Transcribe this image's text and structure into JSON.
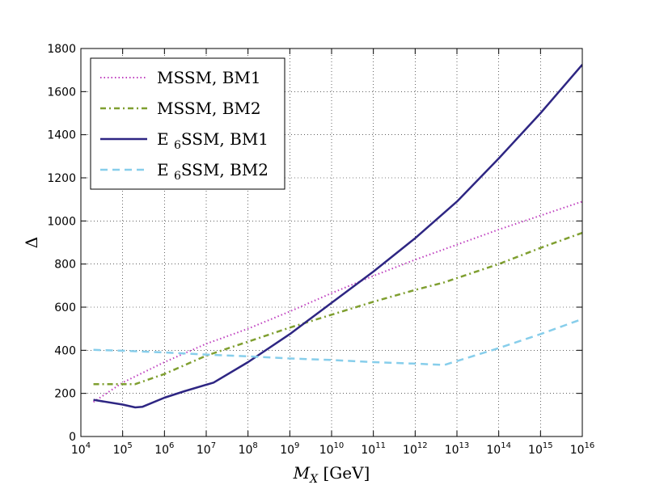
{
  "chart_data": {
    "type": "line",
    "xlabel": "M_X [GeV]",
    "ylabel": "Δ",
    "xscale": "log",
    "xlim": [
      10000,
      10000000000000000
    ],
    "ylim": [
      0,
      1800
    ],
    "grid": true,
    "legend_position": "top-left",
    "x_ticks": [
      {
        "value": 10000,
        "base": "10",
        "exp": "4"
      },
      {
        "value": 100000,
        "base": "10",
        "exp": "5"
      },
      {
        "value": 1000000,
        "base": "10",
        "exp": "6"
      },
      {
        "value": 10000000,
        "base": "10",
        "exp": "7"
      },
      {
        "value": 100000000,
        "base": "10",
        "exp": "8"
      },
      {
        "value": 1000000000,
        "base": "10",
        "exp": "9"
      },
      {
        "value": 10000000000,
        "base": "10",
        "exp": "10"
      },
      {
        "value": 100000000000,
        "base": "10",
        "exp": "11"
      },
      {
        "value": 1000000000000,
        "base": "10",
        "exp": "12"
      },
      {
        "value": 10000000000000,
        "base": "10",
        "exp": "13"
      },
      {
        "value": 100000000000000,
        "base": "10",
        "exp": "14"
      },
      {
        "value": 1000000000000000,
        "base": "10",
        "exp": "15"
      },
      {
        "value": 10000000000000000,
        "base": "10",
        "exp": "16"
      }
    ],
    "y_ticks": [
      0,
      200,
      400,
      600,
      800,
      1000,
      1200,
      1400,
      1600,
      1800
    ],
    "series": [
      {
        "name": "MSSM, BM1",
        "color": "#bf3fbf",
        "style": "dotted",
        "points": [
          [
            20000,
            160
          ],
          [
            100000,
            250
          ],
          [
            1000000,
            345
          ],
          [
            10000000,
            430
          ],
          [
            100000000,
            500
          ],
          [
            1000000000,
            580
          ],
          [
            10000000000,
            665
          ],
          [
            100000000000,
            745
          ],
          [
            1000000000000,
            820
          ],
          [
            10000000000000,
            890
          ],
          [
            100000000000000,
            960
          ],
          [
            1000000000000000,
            1025
          ],
          [
            10000000000000000,
            1090
          ]
        ]
      },
      {
        "name": "MSSM, BM2",
        "color": "#7f9f30",
        "style": "dashdot",
        "points": [
          [
            20000,
            243
          ],
          [
            100000,
            243
          ],
          [
            200000,
            243
          ],
          [
            1000000,
            290
          ],
          [
            10000000,
            375
          ],
          [
            100000000,
            440
          ],
          [
            1000000000,
            505
          ],
          [
            10000000000,
            565
          ],
          [
            100000000000,
            625
          ],
          [
            1000000000000,
            680
          ],
          [
            5000000000000,
            715
          ],
          [
            10000000000000,
            735
          ],
          [
            100000000000000,
            800
          ],
          [
            1000000000000000,
            875
          ],
          [
            10000000000000000,
            945
          ]
        ]
      },
      {
        "name": "E_6SSM, BM1",
        "color": "#2e2683",
        "style": "solid",
        "points": [
          [
            20000,
            170
          ],
          [
            100000,
            148
          ],
          [
            200000,
            135
          ],
          [
            300000,
            138
          ],
          [
            1000000,
            180
          ],
          [
            3000000,
            210
          ],
          [
            10000000,
            240
          ],
          [
            15000000,
            250
          ],
          [
            100000000,
            345
          ],
          [
            1000000000,
            475
          ],
          [
            10000000000,
            620
          ],
          [
            100000000000,
            765
          ],
          [
            1000000000000,
            920
          ],
          [
            10000000000000,
            1090
          ],
          [
            100000000000000,
            1290
          ],
          [
            1000000000000000,
            1500
          ],
          [
            10000000000000000,
            1725
          ]
        ]
      },
      {
        "name": "E_6SSM, BM2",
        "color": "#87ceeb",
        "style": "dashed",
        "points": [
          [
            20000,
            402
          ],
          [
            100000,
            398
          ],
          [
            1000000,
            390
          ],
          [
            10000000,
            380
          ],
          [
            100000000,
            372
          ],
          [
            1000000000,
            362
          ],
          [
            10000000000,
            355
          ],
          [
            100000000000,
            345
          ],
          [
            1000000000000,
            338
          ],
          [
            5000000000000,
            332
          ],
          [
            10000000000000,
            350
          ],
          [
            100000000000000,
            410
          ],
          [
            1000000000000000,
            475
          ],
          [
            10000000000000000,
            545
          ]
        ]
      }
    ]
  }
}
